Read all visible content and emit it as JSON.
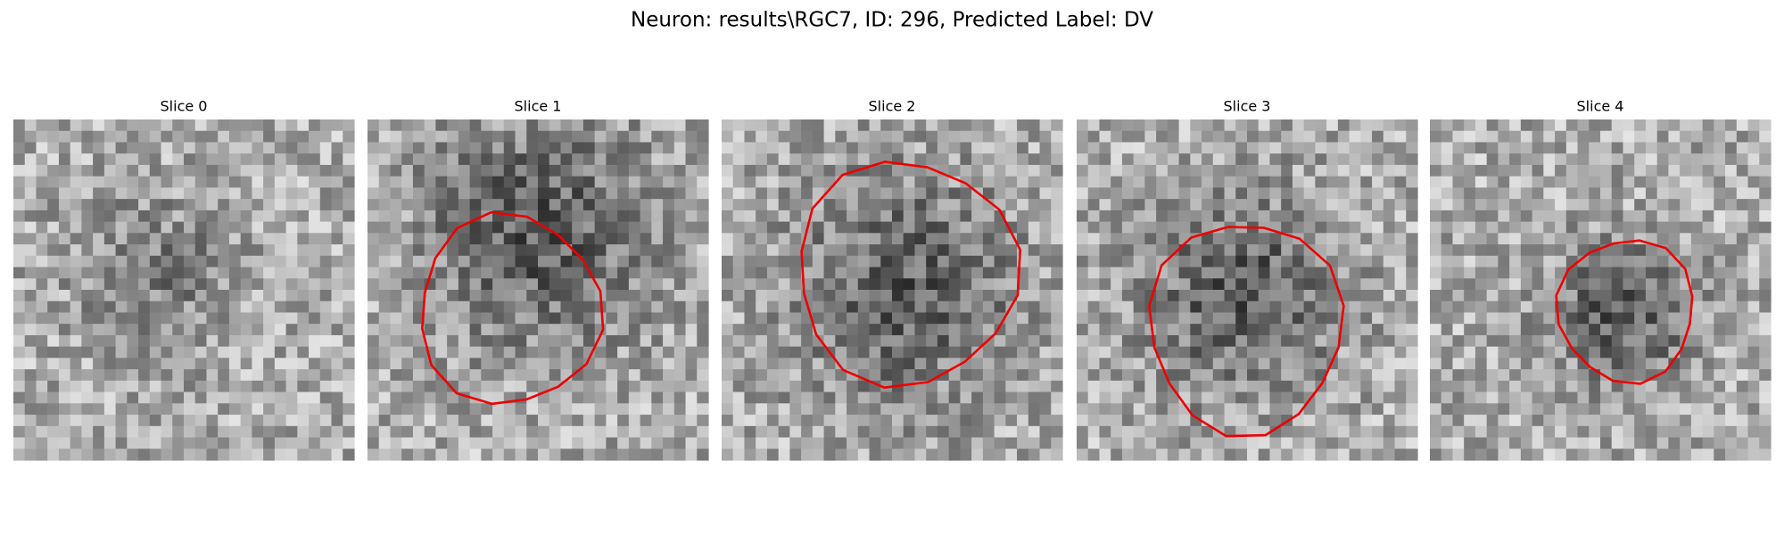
{
  "title": "Neuron: results\\RGC7, ID: 296, Predicted Label: DV",
  "panels": [
    {
      "title": "Slice 0"
    },
    {
      "title": "Slice 1"
    },
    {
      "title": "Slice 2"
    },
    {
      "title": "Slice 3"
    },
    {
      "title": "Slice 4"
    }
  ]
}
